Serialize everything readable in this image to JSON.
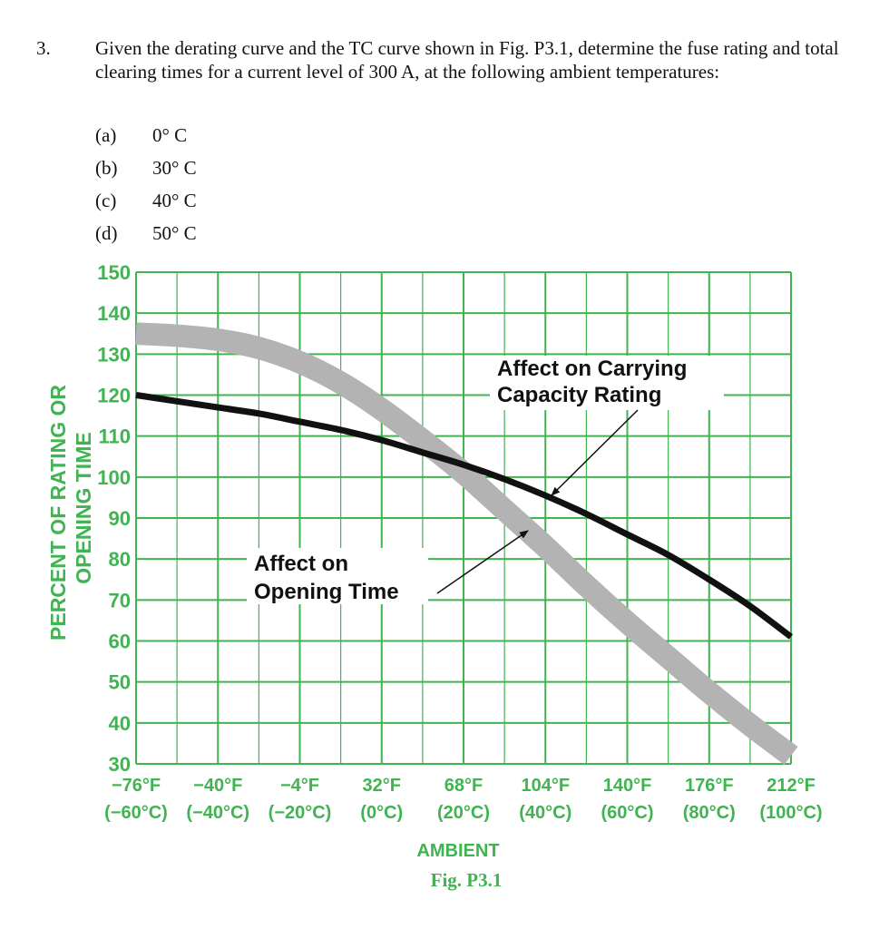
{
  "problem": {
    "number": "3.",
    "text": "Given the derating curve and the TC curve shown in Fig. P3.1, determine the fuse rating and total clearing times for a current level of 300 A, at the following ambient temperatures:",
    "options": [
      {
        "label": "(a)",
        "value": "0° C"
      },
      {
        "label": "(b)",
        "value": "30° C"
      },
      {
        "label": "(c)",
        "value": "40° C"
      },
      {
        "label": "(d)",
        "value": "50° C"
      }
    ]
  },
  "colors": {
    "green": "#3fb450",
    "black": "#111111",
    "gray": "#b3b3b3"
  },
  "chart_data": {
    "type": "line",
    "caption": "Fig. P3.1",
    "xlabel": "AMBIENT",
    "ylabel_line1": "PERCENT OF RATING OR",
    "ylabel_line2": "OPENING TIME",
    "x_ticks": [
      {
        "value": -60,
        "f": "−76°F",
        "c": "(−60°C)"
      },
      {
        "value": -40,
        "f": "−40°F",
        "c": "(−40°C)"
      },
      {
        "value": -20,
        "f": "−4°F",
        "c": "(−20°C)"
      },
      {
        "value": 0,
        "f": "32°F",
        "c": "(0°C)"
      },
      {
        "value": 20,
        "f": "68°F",
        "c": "(20°C)"
      },
      {
        "value": 40,
        "f": "104°F",
        "c": "(40°C)"
      },
      {
        "value": 60,
        "f": "140°F",
        "c": "(60°C)"
      },
      {
        "value": 80,
        "f": "176°F",
        "c": "(80°C)"
      },
      {
        "value": 100,
        "f": "212°F",
        "c": "(100°C)"
      }
    ],
    "y_ticks": [
      30,
      40,
      50,
      60,
      70,
      80,
      90,
      100,
      110,
      120,
      130,
      140,
      150
    ],
    "xlim": [
      -60,
      100
    ],
    "ylim": [
      30,
      150
    ],
    "grid": true,
    "series": [
      {
        "name": "Affect on Carrying Capacity Rating",
        "x": [
          -60,
          -50,
          -40,
          -30,
          -20,
          -10,
          0,
          10,
          20,
          30,
          40,
          50,
          60,
          70,
          80,
          90,
          100
        ],
        "y": [
          120,
          118.5,
          117,
          115.5,
          113.5,
          111.5,
          109,
          106,
          103,
          99.5,
          95.5,
          91,
          86,
          81,
          75,
          68.5,
          61
        ]
      },
      {
        "name": "Affect on Opening Time",
        "x": [
          -60,
          -50,
          -40,
          -30,
          -20,
          -10,
          0,
          10,
          20,
          30,
          40,
          50,
          60,
          70,
          80,
          90,
          100
        ],
        "y": [
          135,
          134.5,
          133.5,
          131.5,
          128,
          123,
          116.5,
          109,
          101,
          92,
          83,
          73.5,
          64.5,
          56,
          47.5,
          39.5,
          32
        ],
        "band_width": 5.5
      }
    ],
    "annotations": [
      {
        "line1": "Affect on Carrying",
        "line2": "Capacity Rating"
      },
      {
        "line1": "Affect on",
        "line2": "Opening Time"
      }
    ]
  }
}
